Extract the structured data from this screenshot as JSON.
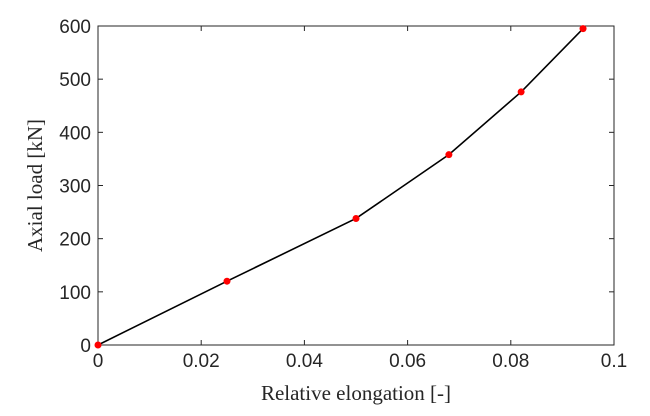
{
  "chart_data": {
    "type": "line",
    "title": "",
    "xlabel": "Relative elongation [-]",
    "ylabel": "Axial load [kN]",
    "xlim": [
      0,
      0.1
    ],
    "ylim": [
      0,
      600
    ],
    "x_ticks": [
      "0",
      "0.02",
      "0.04",
      "0.06",
      "0.08",
      "0.1"
    ],
    "y_ticks": [
      "0",
      "100",
      "200",
      "300",
      "400",
      "500",
      "600"
    ],
    "grid": false,
    "box": true,
    "series": [
      {
        "x": [
          0,
          0.025,
          0.05,
          0.068,
          0.082,
          0.094
        ],
        "y": [
          0,
          120,
          238,
          358,
          476,
          595
        ],
        "line_color": "#000000",
        "marker_color": "#ff0000",
        "marker": "circle"
      }
    ]
  }
}
